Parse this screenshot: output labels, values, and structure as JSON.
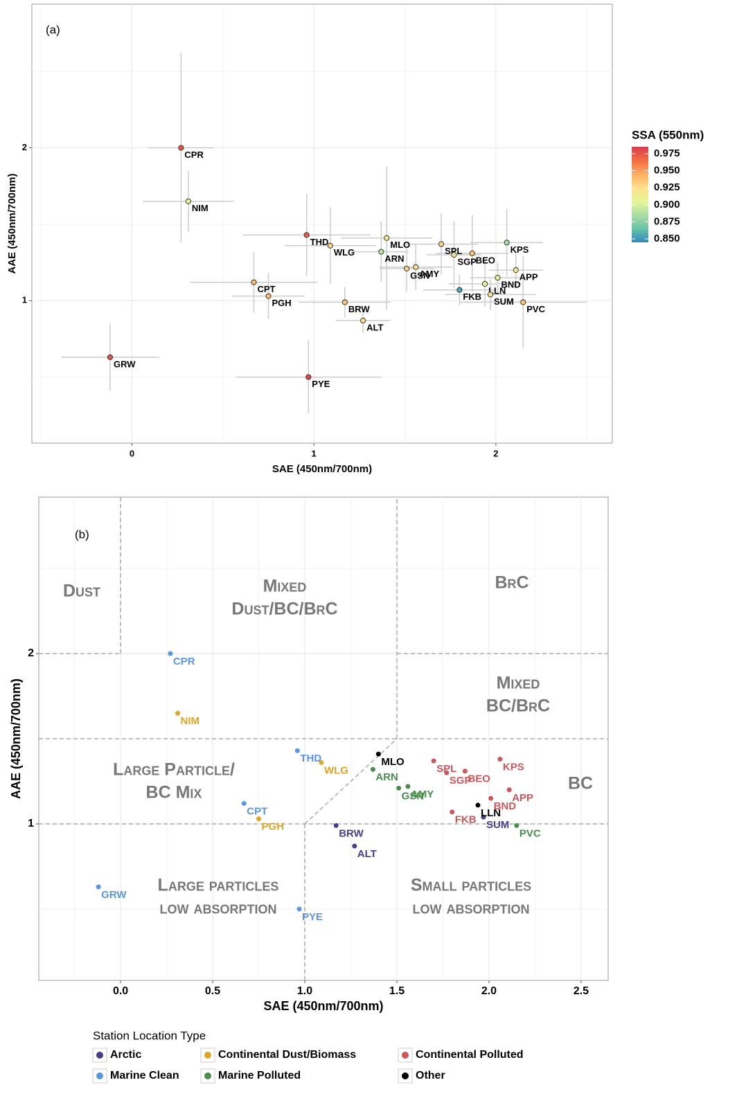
{
  "chart_data": [
    {
      "type": "scatter",
      "panel_label": "(a)",
      "x_label": "SAE (450nm/700nm)",
      "y_label": "AAE (450nm/700nm)",
      "labels": [
        "CPR",
        "NIM",
        "THD",
        "WLG",
        "MLO",
        "ARN",
        "SPL",
        "SGP",
        "BEO",
        "KPS",
        "APP",
        "BND",
        "LLN",
        "AMY",
        "GSN",
        "FKB",
        "SUM",
        "PVC",
        "CPT",
        "PGH",
        "BRW",
        "ALT",
        "GRW",
        "PYE"
      ],
      "x": [
        0.27,
        0.31,
        0.96,
        1.09,
        1.4,
        1.37,
        1.7,
        1.77,
        1.87,
        2.06,
        2.11,
        2.01,
        1.94,
        1.56,
        1.51,
        1.8,
        1.97,
        2.15,
        0.67,
        0.75,
        1.17,
        1.27,
        -0.12,
        0.97
      ],
      "values": [
        2.0,
        1.65,
        1.43,
        1.36,
        1.41,
        1.32,
        1.37,
        1.3,
        1.31,
        1.38,
        1.2,
        1.15,
        1.11,
        1.22,
        1.21,
        1.07,
        1.04,
        0.99,
        1.12,
        1.03,
        0.99,
        0.87,
        0.63,
        0.5
      ],
      "x_err": [
        0.18,
        0.25,
        0.35,
        0.25,
        0.25,
        0.15,
        0.2,
        0.15,
        0.2,
        0.2,
        0.15,
        0.15,
        0.2,
        0.2,
        0.15,
        0.2,
        0.25,
        0.35,
        0.35,
        0.2,
        0.25,
        0.15,
        0.27,
        0.4
      ],
      "y_err": [
        0.62,
        0.2,
        0.27,
        0.25,
        0.47,
        0.2,
        0.2,
        0.22,
        0.25,
        0.22,
        0.12,
        0.1,
        0.15,
        0.15,
        0.15,
        0.1,
        0.1,
        0.3,
        0.2,
        0.15,
        0.1,
        0.08,
        0.22,
        0.24
      ],
      "ssa": [
        0.975,
        0.91,
        0.97,
        0.93,
        0.92,
        0.89,
        0.93,
        0.92,
        0.935,
        0.885,
        0.915,
        0.91,
        0.905,
        0.925,
        0.93,
        0.855,
        0.92,
        0.935,
        0.94,
        0.94,
        0.935,
        0.925,
        0.975,
        0.98
      ],
      "xlim": [
        -0.55,
        2.64
      ],
      "ylim": [
        0.068,
        2.94
      ],
      "xticks": [
        0,
        1,
        2
      ],
      "yticks": [
        1,
        2
      ],
      "minor_xticks": [
        -0.5,
        0.5,
        1.5,
        2.5
      ],
      "minor_yticks": [
        0.5,
        1.5,
        2.5
      ],
      "grid": true,
      "error_color": "#cccccc",
      "colorbar": {
        "title": "SSA (550nm)",
        "lim": [
          0.845,
          0.985
        ],
        "ticks": [
          0.975,
          {
            "value": 0.95,
            "label": "0.950"
          },
          0.925,
          {
            "value": 0.9,
            "label": "0.900"
          },
          0.875,
          {
            "value": 0.85,
            "label": "0.850"
          }
        ],
        "colors": [
          "#3288bd",
          "#66c2a5",
          "#abdda4",
          "#e6f598",
          "#fee08b",
          "#fdae61",
          "#f46d43",
          "#d53e4f"
        ]
      }
    },
    {
      "type": "grouped_scatter",
      "panel_label": "(b)",
      "x_label": "SAE (450nm/700nm)",
      "y_label": "AAE (450nm/700nm)",
      "legend_title": "Station Location Type",
      "series": [
        {
          "name": "Arctic",
          "color": "#483d8b",
          "labels": [
            "BRW",
            "ALT",
            "SUM"
          ],
          "x": [
            1.17,
            1.27,
            1.97
          ],
          "values": [
            0.99,
            0.87,
            1.04
          ]
        },
        {
          "name": "Continental Dust/Biomass",
          "color": "#e0a526",
          "labels": [
            "NIM",
            "WLG",
            "PGH"
          ],
          "x": [
            0.31,
            1.09,
            0.75
          ],
          "values": [
            1.65,
            1.36,
            1.03
          ]
        },
        {
          "name": "Continental Polluted",
          "color": "#d0545a",
          "labels": [
            "SPL",
            "SGP",
            "BEO",
            "KPS",
            "APP",
            "BND",
            "FKB"
          ],
          "x": [
            1.7,
            1.77,
            1.87,
            2.06,
            2.11,
            2.01,
            1.8
          ],
          "values": [
            1.37,
            1.3,
            1.31,
            1.38,
            1.2,
            1.15,
            1.07
          ]
        },
        {
          "name": "Marine Clean",
          "color": "#5b95e6",
          "labels": [
            "CPR",
            "THD",
            "CPT",
            "GRW",
            "PYE"
          ],
          "x": [
            0.27,
            0.96,
            0.67,
            -0.12,
            0.97
          ],
          "values": [
            2.0,
            1.43,
            1.12,
            0.63,
            0.5
          ]
        },
        {
          "name": "Marine Polluted",
          "color": "#4a8c4a",
          "labels": [
            "ARN",
            "AMY",
            "GSN",
            "PVC"
          ],
          "x": [
            1.37,
            1.56,
            1.51,
            2.15
          ],
          "values": [
            1.32,
            1.22,
            1.21,
            0.99
          ]
        },
        {
          "name": "Other",
          "color": "#000000",
          "labels": [
            "MLO",
            "LLN"
          ],
          "x": [
            1.4,
            1.94
          ],
          "values": [
            1.41,
            1.11
          ]
        }
      ],
      "regions": [
        {
          "lines": [
            "Dust"
          ]
        },
        {
          "lines": [
            "Mixed",
            "Dust/BC/BrC"
          ]
        },
        {
          "lines": [
            "BrC"
          ]
        },
        {
          "lines": [
            "Mixed",
            "BC/BrC"
          ]
        },
        {
          "lines": [
            "Large Particle/",
            "BC Mix"
          ]
        },
        {
          "lines": [
            "BC"
          ]
        },
        {
          "lines": [
            "Large particles",
            "low absorption"
          ]
        },
        {
          "lines": [
            "Small particles",
            "low absorption"
          ]
        }
      ],
      "guide_lines": [
        {
          "x": [
            0,
            0
          ],
          "y": [
            2,
            2.919
          ]
        },
        {
          "x": [
            -0.444,
            0
          ],
          "y": [
            2,
            2
          ]
        },
        {
          "x": [
            1.5,
            2.647
          ],
          "y": [
            2,
            2
          ]
        },
        {
          "x": [
            1.5,
            1.5
          ],
          "y": [
            1.5,
            2.919
          ]
        },
        {
          "x": [
            -0.444,
            2.647
          ],
          "y": [
            1.5,
            1.5
          ]
        },
        {
          "x": [
            1,
            1.5
          ],
          "y": [
            1,
            1.5
          ]
        },
        {
          "x": [
            1,
            1
          ],
          "y": [
            0.081,
            1
          ]
        },
        {
          "x": [
            -0.444,
            2.647
          ],
          "y": [
            1,
            1
          ]
        }
      ],
      "xlim": [
        -0.444,
        2.647
      ],
      "ylim": [
        0.081,
        2.919
      ],
      "xticks": [
        {
          "value": 0,
          "label": "0.0"
        },
        0.5,
        {
          "value": 1,
          "label": "1.0"
        },
        1.5,
        {
          "value": 2,
          "label": "2.0"
        },
        2.5
      ],
      "yticks": [
        1,
        2
      ],
      "minor_xticks": [
        -0.25,
        0.25,
        0.75,
        1.25,
        1.75,
        2.25
      ],
      "minor_yticks": [
        0.5,
        1.5,
        2.5
      ],
      "grid": true
    }
  ]
}
